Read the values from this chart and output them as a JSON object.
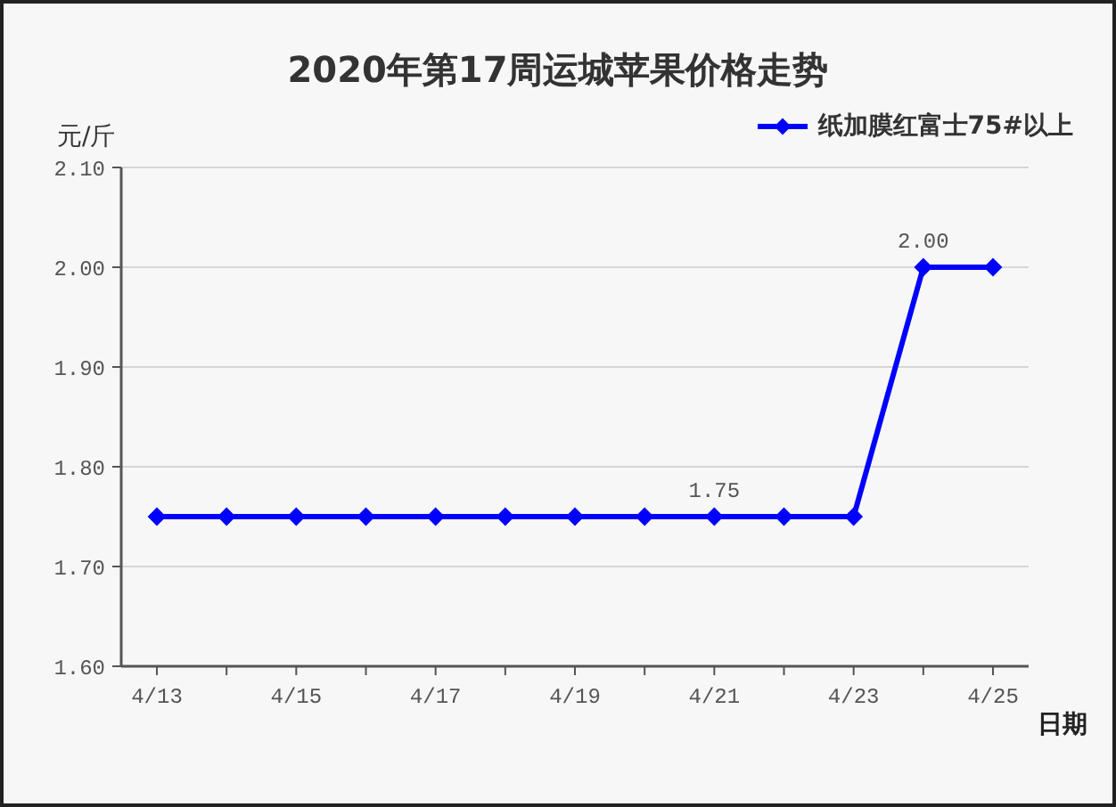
{
  "chart_data": {
    "type": "line",
    "title": "2020年第17周运城苹果价格走势",
    "ylabel": "元/斤",
    "xlabel": "日期",
    "categories": [
      "4/13",
      null,
      "4/15",
      null,
      "4/17",
      null,
      "4/19",
      null,
      "4/21",
      null,
      "4/23",
      null,
      "4/25"
    ],
    "series": [
      {
        "name": "纸加膜红富士75#以上",
        "color": "#0000ff",
        "values": [
          1.75,
          1.75,
          1.75,
          1.75,
          1.75,
          1.75,
          1.75,
          1.75,
          1.75,
          1.75,
          1.75,
          2.0,
          2.0
        ],
        "value_labels": [
          null,
          null,
          null,
          null,
          null,
          null,
          null,
          null,
          "1.75",
          null,
          null,
          "2.00",
          null
        ]
      }
    ],
    "ylim": [
      1.6,
      2.1
    ],
    "yticks": [
      {
        "value": 1.6,
        "label": "1.60"
      },
      {
        "value": 1.7,
        "label": "1.70"
      },
      {
        "value": 1.8,
        "label": "1.80"
      },
      {
        "value": 1.9,
        "label": "1.90"
      },
      {
        "value": 2.0,
        "label": "2.00"
      },
      {
        "value": 2.1,
        "label": "2.10"
      }
    ],
    "grid": "y",
    "legend": "top right",
    "marker": "diamond",
    "line_style": "solid"
  }
}
